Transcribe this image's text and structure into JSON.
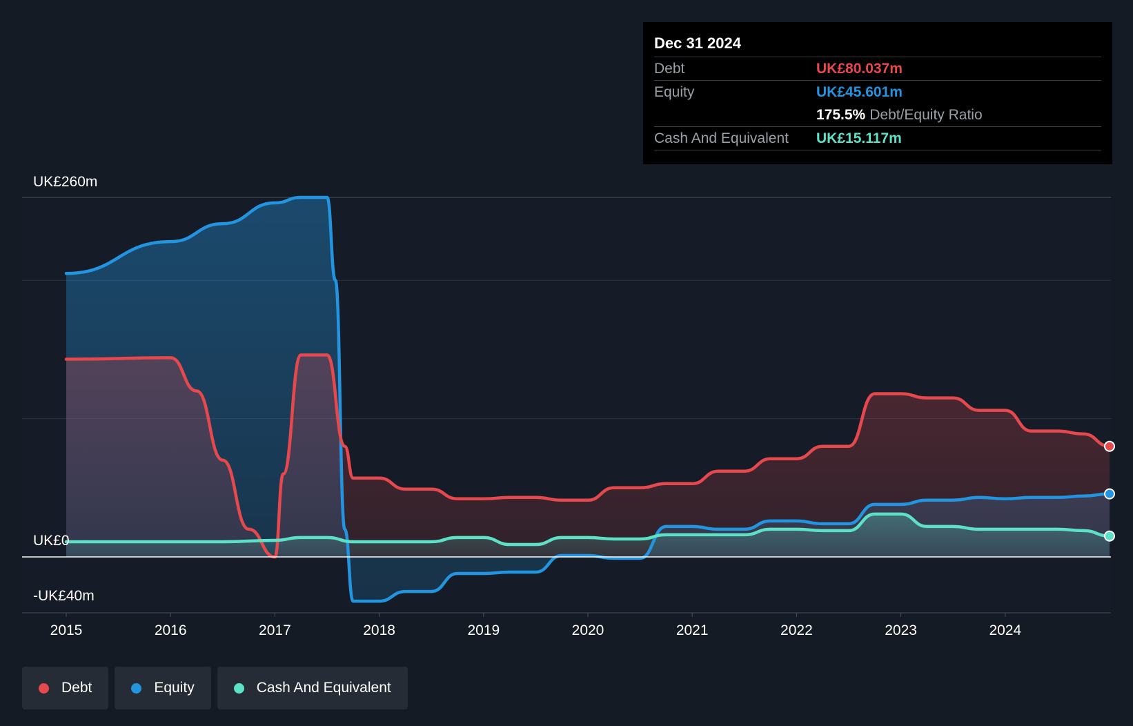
{
  "tooltip": {
    "date": "Dec 31 2024",
    "debt_label": "Debt",
    "debt_value": "UK£80.037m",
    "equity_label": "Equity",
    "equity_value": "UK£45.601m",
    "ratio_value": "175.5%",
    "ratio_label": "Debt/Equity Ratio",
    "cash_label": "Cash And Equivalent",
    "cash_value": "UK£15.117m"
  },
  "legend": {
    "debt": "Debt",
    "equity": "Equity",
    "cash": "Cash And Equivalent"
  },
  "colors": {
    "debt": "#e5484d",
    "equity": "#2394df",
    "cash": "#5ce0c6",
    "background": "#151b24",
    "tooltip_bg": "#000000"
  },
  "chart_data": {
    "type": "area",
    "y_axis_labels": {
      "top": "UK£260m",
      "zero": "UK£0",
      "bottom": "-UK£40m"
    },
    "ylim": [
      -40,
      260
    ],
    "x_ticks": [
      "2015",
      "2016",
      "2017",
      "2018",
      "2019",
      "2020",
      "2021",
      "2022",
      "2023",
      "2024"
    ],
    "xlim": [
      2015.0,
      2025.0
    ],
    "grid": true,
    "legend_position": "bottom-left",
    "series": [
      {
        "name": "Equity",
        "key": "equity",
        "points": [
          [
            2015.0,
            205
          ],
          [
            2016.0,
            228
          ],
          [
            2016.5,
            241
          ],
          [
            2017.0,
            256
          ],
          [
            2017.25,
            260
          ],
          [
            2017.5,
            260
          ],
          [
            2017.58,
            200
          ],
          [
            2017.67,
            20
          ],
          [
            2017.75,
            -32
          ],
          [
            2018.0,
            -32
          ],
          [
            2018.25,
            -25
          ],
          [
            2018.5,
            -25
          ],
          [
            2018.75,
            -12
          ],
          [
            2019.0,
            -12
          ],
          [
            2019.25,
            -11
          ],
          [
            2019.5,
            -11
          ],
          [
            2019.75,
            1
          ],
          [
            2020.0,
            1
          ],
          [
            2020.25,
            -1
          ],
          [
            2020.5,
            -1
          ],
          [
            2020.75,
            22
          ],
          [
            2021.0,
            22
          ],
          [
            2021.25,
            20
          ],
          [
            2021.5,
            20
          ],
          [
            2021.75,
            26
          ],
          [
            2022.0,
            26
          ],
          [
            2022.25,
            24
          ],
          [
            2022.5,
            24
          ],
          [
            2022.75,
            38
          ],
          [
            2023.0,
            38
          ],
          [
            2023.25,
            41
          ],
          [
            2023.5,
            41
          ],
          [
            2023.75,
            43
          ],
          [
            2024.0,
            42
          ],
          [
            2024.25,
            43
          ],
          [
            2024.5,
            43
          ],
          [
            2024.75,
            44
          ],
          [
            2025.0,
            45.6
          ]
        ]
      },
      {
        "name": "Debt",
        "key": "debt",
        "points": [
          [
            2015.0,
            143
          ],
          [
            2016.0,
            144
          ],
          [
            2016.25,
            120
          ],
          [
            2016.5,
            70
          ],
          [
            2016.75,
            20
          ],
          [
            2017.0,
            0
          ],
          [
            2017.08,
            60
          ],
          [
            2017.25,
            146
          ],
          [
            2017.5,
            146
          ],
          [
            2017.67,
            80
          ],
          [
            2017.75,
            57
          ],
          [
            2018.0,
            57
          ],
          [
            2018.25,
            49
          ],
          [
            2018.5,
            49
          ],
          [
            2018.75,
            42
          ],
          [
            2019.0,
            42
          ],
          [
            2019.25,
            43
          ],
          [
            2019.5,
            43
          ],
          [
            2019.75,
            41
          ],
          [
            2020.0,
            41
          ],
          [
            2020.25,
            50
          ],
          [
            2020.5,
            50
          ],
          [
            2020.75,
            53
          ],
          [
            2021.0,
            53
          ],
          [
            2021.25,
            62
          ],
          [
            2021.5,
            62
          ],
          [
            2021.75,
            71
          ],
          [
            2022.0,
            71
          ],
          [
            2022.25,
            80
          ],
          [
            2022.5,
            80
          ],
          [
            2022.75,
            118
          ],
          [
            2023.0,
            118
          ],
          [
            2023.25,
            115
          ],
          [
            2023.5,
            115
          ],
          [
            2023.75,
            106
          ],
          [
            2024.0,
            106
          ],
          [
            2024.25,
            91
          ],
          [
            2024.5,
            91
          ],
          [
            2024.75,
            89
          ],
          [
            2025.0,
            80.0
          ]
        ]
      },
      {
        "name": "Cash And Equivalent",
        "key": "cash",
        "points": [
          [
            2015.0,
            11
          ],
          [
            2016.0,
            11
          ],
          [
            2016.5,
            11
          ],
          [
            2017.0,
            12
          ],
          [
            2017.25,
            14
          ],
          [
            2017.5,
            14
          ],
          [
            2017.75,
            11
          ],
          [
            2018.0,
            11
          ],
          [
            2018.25,
            11
          ],
          [
            2018.5,
            11
          ],
          [
            2018.75,
            14
          ],
          [
            2019.0,
            14
          ],
          [
            2019.25,
            9
          ],
          [
            2019.5,
            9
          ],
          [
            2019.75,
            14
          ],
          [
            2020.0,
            14
          ],
          [
            2020.25,
            13
          ],
          [
            2020.5,
            13
          ],
          [
            2020.75,
            16
          ],
          [
            2021.0,
            16
          ],
          [
            2021.25,
            16
          ],
          [
            2021.5,
            16
          ],
          [
            2021.75,
            20
          ],
          [
            2022.0,
            20
          ],
          [
            2022.25,
            19
          ],
          [
            2022.5,
            19
          ],
          [
            2022.75,
            31
          ],
          [
            2023.0,
            31
          ],
          [
            2023.25,
            22
          ],
          [
            2023.5,
            22
          ],
          [
            2023.75,
            20
          ],
          [
            2024.0,
            20
          ],
          [
            2024.25,
            20
          ],
          [
            2024.5,
            20
          ],
          [
            2024.75,
            19
          ],
          [
            2025.0,
            15.1
          ]
        ]
      }
    ]
  }
}
